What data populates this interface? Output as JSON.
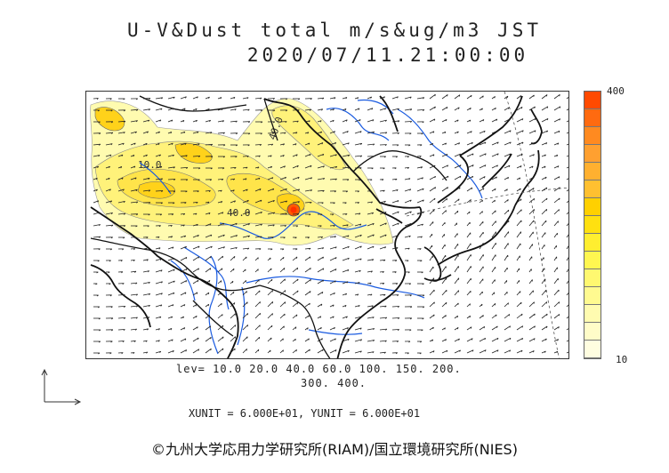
{
  "title": {
    "line1": "U-V&Dust total m/s&ug/m3 JST",
    "line2": "2020/07/11.21:00:00"
  },
  "colorbar": {
    "max_label": "400",
    "min_label": "10",
    "colors_top_to_bottom": [
      "#ff4a00",
      "#ff6a10",
      "#ff8a20",
      "#ffa030",
      "#ffb030",
      "#ffc030",
      "#ffd000",
      "#ffe010",
      "#ffee30",
      "#fff650",
      "#fff870",
      "#fffa90",
      "#fffbb0",
      "#fffcc8",
      "#fffde0"
    ]
  },
  "contour_labels": [
    "10.0",
    "40.0",
    "40.0"
  ],
  "levels": {
    "line1": "lev= 10.0 20.0 40.0 60.0 100. 150. 200.",
    "line2": "300. 400."
  },
  "units": "XUNIT = 6.000E+01, YUNIT = 6.000E+01",
  "copyright": "©九州大学応用力学研究所(RIAM)/国立環境研究所(NIES)",
  "colors": {
    "coast": "#111111",
    "river": "#1a5be0",
    "dust_low": "#fffbb0",
    "dust_mid": "#ffe84a",
    "dust_high": "#ffcf00",
    "dust_peak": "#ff5a00"
  }
}
